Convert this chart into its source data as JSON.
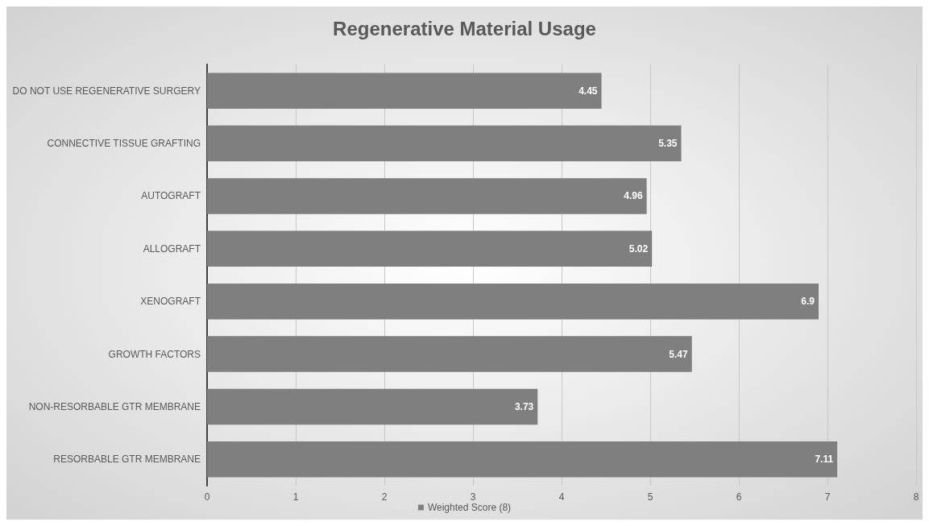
{
  "chart_data": {
    "type": "bar",
    "orientation": "horizontal",
    "title": "Regenerative Material Usage",
    "categories": [
      "DO NOT USE REGENERATIVE SURGERY",
      "CONNECTIVE TISSUE GRAFTING",
      "AUTOGRAFT",
      "ALLOGRAFT",
      "XENOGRAFT",
      "GROWTH FACTORS",
      "NON-RESORBABLE GTR MEMBRANE",
      "RESORBABLE GTR MEMBRANE"
    ],
    "series": [
      {
        "name": "Weighted Score (8)",
        "color": "#7f7f7f",
        "values": [
          4.45,
          5.35,
          4.96,
          5.02,
          6.9,
          5.47,
          3.73,
          7.11
        ]
      }
    ],
    "xlim": [
      0,
      8
    ],
    "xticks": [
      0,
      1,
      2,
      3,
      4,
      5,
      6,
      7,
      8
    ],
    "grid": "x",
    "legend": "bottom",
    "data_labels": true
  }
}
